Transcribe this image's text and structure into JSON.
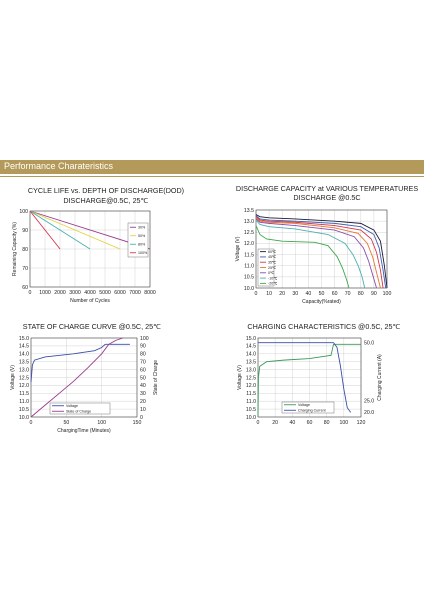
{
  "banner": {
    "title": "Performance Charateristics",
    "color": "#b49a5a"
  },
  "chart_data": [
    {
      "id": "cycle",
      "type": "line",
      "title": "CYCLE LIFE vs. DEPTH OF DISCHARGE(DOD)",
      "subtitle": "DISCHARGE@0.5C, 25℃",
      "xlabel": "Number of Cycles",
      "ylabel": "Remaining Capacity (%)",
      "xlim": [
        0,
        8000
      ],
      "ylim": [
        60,
        100
      ],
      "xticks": [
        0,
        1000,
        2000,
        3000,
        4000,
        5000,
        6000,
        7000,
        8000
      ],
      "yticks": [
        60,
        70,
        80,
        90,
        100
      ],
      "grid": true,
      "legend_position": "top-right",
      "series": [
        {
          "name": "30%",
          "color": "#9b3a8c",
          "x": [
            0,
            8000
          ],
          "y": [
            100,
            80
          ]
        },
        {
          "name": "50%",
          "color": "#e3d23a",
          "x": [
            0,
            6000
          ],
          "y": [
            100,
            80
          ]
        },
        {
          "name": "80%",
          "color": "#4bb0b0",
          "x": [
            0,
            4000
          ],
          "y": [
            100,
            80
          ]
        },
        {
          "name": "100%",
          "color": "#d8354a",
          "x": [
            0,
            2000
          ],
          "y": [
            100,
            80
          ]
        }
      ]
    },
    {
      "id": "discharge",
      "type": "line",
      "title": "DISCHARGE CAPACITY at VARIOUS TEMPERATURES",
      "subtitle": "DISCHARGE @0.5C",
      "xlabel": "Capacity(%rated)",
      "ylabel": "Voltage (V)",
      "xlim": [
        0,
        100
      ],
      "ylim": [
        10.0,
        13.5
      ],
      "xticks": [
        0,
        10,
        20,
        30,
        40,
        50,
        60,
        70,
        80,
        90,
        100
      ],
      "yticks": [
        10.0,
        10.5,
        11.0,
        11.5,
        12.0,
        12.5,
        13.0,
        13.5
      ],
      "grid": true,
      "legend_position": "bottom-left",
      "series": [
        {
          "name": "60℃",
          "color": "#1a1a3a",
          "x": [
            0,
            3,
            10,
            30,
            60,
            80,
            90,
            95,
            98,
            100
          ],
          "y": [
            13.3,
            13.2,
            13.15,
            13.1,
            13.0,
            12.9,
            12.6,
            12.1,
            11.0,
            10.0
          ]
        },
        {
          "name": "45℃",
          "color": "#3a5fb0",
          "x": [
            0,
            3,
            10,
            30,
            60,
            80,
            90,
            94,
            97,
            99
          ],
          "y": [
            13.25,
            13.1,
            13.05,
            13.0,
            12.9,
            12.75,
            12.4,
            11.8,
            10.8,
            10.0
          ]
        },
        {
          "name": "35℃",
          "color": "#d7354a",
          "x": [
            0,
            3,
            10,
            30,
            60,
            80,
            88,
            92,
            95,
            97
          ],
          "y": [
            13.2,
            13.05,
            13.0,
            12.95,
            12.8,
            12.6,
            12.2,
            11.6,
            10.8,
            10.0
          ]
        },
        {
          "name": "25℃",
          "color": "#e07a30",
          "x": [
            0,
            3,
            10,
            30,
            60,
            78,
            85,
            89,
            92,
            95
          ],
          "y": [
            13.15,
            13.0,
            12.95,
            12.9,
            12.7,
            12.45,
            12.0,
            11.4,
            10.7,
            10.0
          ]
        },
        {
          "name": "0℃",
          "color": "#8a4bb0",
          "x": [
            0,
            3,
            10,
            30,
            60,
            75,
            82,
            86,
            89,
            92
          ],
          "y": [
            13.1,
            12.95,
            12.9,
            12.8,
            12.6,
            12.3,
            11.8,
            11.2,
            10.6,
            10.0
          ]
        },
        {
          "name": "-10℃",
          "color": "#4bb0b0",
          "x": [
            0,
            3,
            10,
            30,
            55,
            68,
            74,
            78,
            81,
            83
          ],
          "y": [
            13.05,
            12.85,
            12.75,
            12.65,
            12.4,
            12.0,
            11.5,
            11.0,
            10.5,
            10.0
          ]
        },
        {
          "name": "-20℃",
          "color": "#3ea84a",
          "x": [
            0,
            3,
            8,
            20,
            45,
            55,
            62,
            66,
            69,
            71
          ],
          "y": [
            12.8,
            12.4,
            12.2,
            12.1,
            12.05,
            11.9,
            11.4,
            10.9,
            10.4,
            10.0
          ]
        }
      ]
    },
    {
      "id": "soc",
      "type": "line",
      "title": "STATE OF CHARGE CURVE @0.5C, 25℃",
      "xlabel": "ChargingTime (Minutes)",
      "ylabel": "Voltage (V)",
      "y2label": "State of Charge",
      "xlim": [
        0,
        150
      ],
      "ylim": [
        10.0,
        15.0
      ],
      "y2lim": [
        0,
        100
      ],
      "xticks": [
        0,
        50,
        100,
        150
      ],
      "yticks": [
        10.0,
        10.5,
        11.0,
        11.5,
        12.0,
        12.5,
        13.0,
        13.5,
        14.0,
        14.5,
        15.0
      ],
      "y2ticks": [
        0,
        10,
        20,
        30,
        40,
        50,
        60,
        70,
        80,
        90,
        100
      ],
      "grid": true,
      "legend_position": "bottom-center",
      "series": [
        {
          "name": "Voltage",
          "color": "#3a4fa8",
          "axis": "left",
          "x": [
            0,
            2,
            5,
            20,
            60,
            90,
            100,
            105,
            110,
            140
          ],
          "y": [
            12.2,
            13.3,
            13.6,
            13.8,
            14.0,
            14.2,
            14.4,
            14.6,
            14.6,
            14.6
          ]
        },
        {
          "name": "State of Charge",
          "color": "#9b3a8c",
          "axis": "right",
          "x": [
            0,
            20,
            40,
            60,
            80,
            100,
            110,
            120,
            130
          ],
          "y": [
            0,
            15,
            30,
            45,
            62,
            80,
            92,
            97,
            100
          ]
        }
      ]
    },
    {
      "id": "charging",
      "type": "line",
      "title": "CHARGING CHARACTERISTICS @0.5C, 25℃",
      "xlabel": "",
      "ylabel": "Voltage (V)",
      "y2label": "Charging Current (A)",
      "xlim": [
        0,
        120
      ],
      "ylim": [
        10.0,
        15.0
      ],
      "y2lim": [
        18,
        52
      ],
      "xticks": [
        0,
        20,
        40,
        60,
        80,
        100,
        120
      ],
      "yticks": [
        10.0,
        10.5,
        11.0,
        11.5,
        12.0,
        12.5,
        13.0,
        13.5,
        14.0,
        14.5,
        15.0
      ],
      "y2ticks": [
        20.0,
        25.0,
        50.0
      ],
      "y2ticklabels": [
        "20.0",
        "25.0",
        "50.0"
      ],
      "grid": true,
      "legend_position": "bottom-center",
      "series": [
        {
          "name": "Voltage",
          "color": "#3a9a5a",
          "axis": "left",
          "x": [
            0,
            0.5,
            2,
            10,
            30,
            60,
            85,
            88,
            90,
            120
          ],
          "y": [
            10.0,
            12.5,
            13.2,
            13.5,
            13.6,
            13.7,
            13.9,
            14.6,
            14.6,
            14.6
          ]
        },
        {
          "name": "Charging Current",
          "color": "#3a4fa8",
          "axis": "right",
          "x": [
            0,
            85,
            88,
            92,
            96,
            100,
            104,
            108
          ],
          "y": [
            50,
            50,
            50,
            48,
            40,
            30,
            22,
            20
          ]
        }
      ]
    }
  ]
}
